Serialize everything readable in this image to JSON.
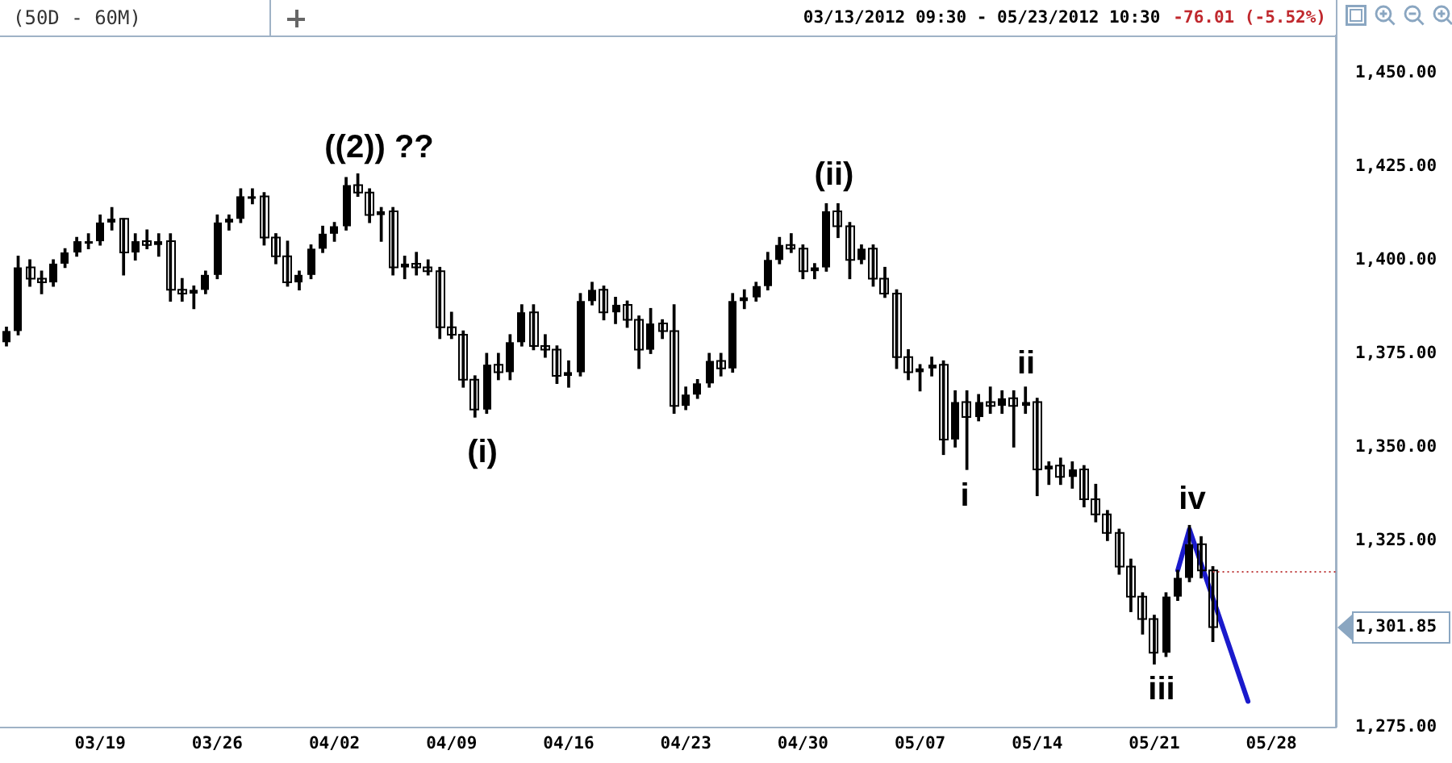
{
  "chart_data": {
    "type": "candlestick",
    "title": "(50D - 60M)",
    "subtitle": "03/13/2012 09:30 - 05/23/2012 10:30",
    "annotations": [
      "-76.01 (-5.52%)",
      "((2)) ??",
      "(i)",
      "(ii)",
      "i",
      "ii",
      "iii",
      "iv"
    ],
    "categories": [
      null,
      null,
      null,
      null,
      null,
      null,
      null,
      null,
      "03/19",
      null,
      null,
      null,
      null,
      null,
      null,
      null,
      null,
      null,
      "03/26",
      null,
      null,
      null,
      null,
      null,
      null,
      null,
      null,
      null,
      "04/02",
      null,
      null,
      null,
      null,
      null,
      null,
      null,
      null,
      null,
      "04/09",
      null,
      null,
      null,
      null,
      null,
      null,
      null,
      null,
      null,
      "04/16",
      null,
      null,
      null,
      null,
      null,
      null,
      null,
      null,
      null,
      "04/23",
      null,
      null,
      null,
      null,
      null,
      null,
      null,
      null,
      null,
      "04/30",
      null,
      null,
      null,
      null,
      null,
      null,
      null,
      null,
      null,
      "05/07",
      null,
      null,
      null,
      null,
      null,
      null,
      null,
      null,
      null,
      "05/14",
      null,
      null,
      null,
      null,
      null,
      null,
      null,
      null,
      null,
      "05/21",
      null,
      null,
      null,
      null,
      null,
      null,
      null,
      null,
      null,
      "05/28",
      null,
      null,
      null,
      null,
      null
    ],
    "ohlc": [
      [
        1378,
        1382,
        1377,
        1381
      ],
      [
        1381,
        1401,
        1380,
        1398
      ],
      [
        1398,
        1400,
        1393,
        1395
      ],
      [
        1395,
        1397,
        1391,
        1394
      ],
      [
        1394,
        1400,
        1393,
        1399
      ],
      [
        1399,
        1403,
        1398,
        1402
      ],
      [
        1402,
        1406,
        1401,
        1405
      ],
      [
        1405,
        1407,
        1403,
        1405
      ],
      [
        1405,
        1412,
        1404,
        1410
      ],
      [
        1410,
        1414,
        1408,
        1411
      ],
      [
        1411,
        1411,
        1396,
        1402
      ],
      [
        1402,
        1407,
        1400,
        1405
      ],
      [
        1405,
        1408,
        1403,
        1404
      ],
      [
        1404,
        1407,
        1401,
        1405
      ],
      [
        1405,
        1407,
        1389,
        1392
      ],
      [
        1392,
        1395,
        1389,
        1391
      ],
      [
        1391,
        1393,
        1387,
        1392
      ],
      [
        1392,
        1397,
        1391,
        1396
      ],
      [
        1396,
        1412,
        1395,
        1410
      ],
      [
        1410,
        1412,
        1408,
        1411
      ],
      [
        1411,
        1419,
        1410,
        1417
      ],
      [
        1417,
        1419,
        1415,
        1417
      ],
      [
        1417,
        1418,
        1404,
        1406
      ],
      [
        1406,
        1407,
        1399,
        1401
      ],
      [
        1401,
        1405,
        1393,
        1394
      ],
      [
        1394,
        1397,
        1392,
        1396
      ],
      [
        1396,
        1404,
        1395,
        1403
      ],
      [
        1403,
        1409,
        1402,
        1407
      ],
      [
        1407,
        1410,
        1405,
        1409
      ],
      [
        1409,
        1422,
        1408,
        1420
      ],
      [
        1420,
        1423,
        1417,
        1418
      ],
      [
        1418,
        1419,
        1410,
        1412
      ],
      [
        1412,
        1414,
        1405,
        1413
      ],
      [
        1413,
        1414,
        1396,
        1398
      ],
      [
        1398,
        1401,
        1395,
        1399
      ],
      [
        1399,
        1402,
        1396,
        1398
      ],
      [
        1398,
        1400,
        1396,
        1397
      ],
      [
        1397,
        1398,
        1379,
        1382
      ],
      [
        1382,
        1386,
        1379,
        1380
      ],
      [
        1380,
        1381,
        1366,
        1368
      ],
      [
        1368,
        1369,
        1358,
        1360
      ],
      [
        1360,
        1375,
        1359,
        1372
      ],
      [
        1372,
        1375,
        1368,
        1370
      ],
      [
        1370,
        1380,
        1368,
        1378
      ],
      [
        1378,
        1388,
        1377,
        1386
      ],
      [
        1386,
        1388,
        1376,
        1377
      ],
      [
        1377,
        1380,
        1374,
        1376
      ],
      [
        1376,
        1377,
        1367,
        1369
      ],
      [
        1369,
        1373,
        1366,
        1370
      ],
      [
        1370,
        1391,
        1369,
        1389
      ],
      [
        1389,
        1394,
        1388,
        1392
      ],
      [
        1392,
        1393,
        1384,
        1386
      ],
      [
        1386,
        1390,
        1383,
        1388
      ],
      [
        1388,
        1389,
        1382,
        1384
      ],
      [
        1384,
        1385,
        1371,
        1376
      ],
      [
        1376,
        1387,
        1375,
        1383
      ],
      [
        1383,
        1384,
        1379,
        1381
      ],
      [
        1381,
        1388,
        1359,
        1361
      ],
      [
        1361,
        1366,
        1360,
        1364
      ],
      [
        1364,
        1368,
        1363,
        1367
      ],
      [
        1367,
        1375,
        1366,
        1373
      ],
      [
        1373,
        1375,
        1369,
        1371
      ],
      [
        1371,
        1391,
        1370,
        1389
      ],
      [
        1389,
        1392,
        1387,
        1390
      ],
      [
        1390,
        1394,
        1389,
        1393
      ],
      [
        1393,
        1402,
        1392,
        1400
      ],
      [
        1400,
        1406,
        1399,
        1404
      ],
      [
        1404,
        1407,
        1402,
        1403
      ],
      [
        1403,
        1404,
        1395,
        1397
      ],
      [
        1397,
        1399,
        1395,
        1398
      ],
      [
        1398,
        1415,
        1397,
        1413
      ],
      [
        1413,
        1415,
        1406,
        1409
      ],
      [
        1409,
        1410,
        1395,
        1400
      ],
      [
        1400,
        1404,
        1399,
        1403
      ],
      [
        1403,
        1404,
        1393,
        1395
      ],
      [
        1395,
        1398,
        1390,
        1391
      ],
      [
        1391,
        1392,
        1371,
        1374
      ],
      [
        1374,
        1376,
        1368,
        1370
      ],
      [
        1370,
        1372,
        1365,
        1371
      ],
      [
        1371,
        1374,
        1369,
        1372
      ],
      [
        1372,
        1373,
        1348,
        1352
      ],
      [
        1352,
        1365,
        1350,
        1362
      ],
      [
        1362,
        1365,
        1344,
        1358
      ],
      [
        1358,
        1364,
        1357,
        1362
      ],
      [
        1362,
        1366,
        1359,
        1361
      ],
      [
        1361,
        1365,
        1359,
        1363
      ],
      [
        1363,
        1365,
        1350,
        1361
      ],
      [
        1361,
        1366,
        1359,
        1362
      ],
      [
        1362,
        1363,
        1337,
        1344
      ],
      [
        1344,
        1346,
        1340,
        1345
      ],
      [
        1345,
        1347,
        1340,
        1342
      ],
      [
        1342,
        1346,
        1339,
        1344
      ],
      [
        1344,
        1345,
        1334,
        1336
      ],
      [
        1336,
        1340,
        1330,
        1332
      ],
      [
        1332,
        1333,
        1325,
        1327
      ],
      [
        1327,
        1328,
        1316,
        1318
      ],
      [
        1318,
        1320,
        1306,
        1310
      ],
      [
        1310,
        1311,
        1300,
        1304
      ],
      [
        1304,
        1305,
        1292,
        1295
      ],
      [
        1295,
        1311,
        1294,
        1310
      ],
      [
        1310,
        1317,
        1309,
        1315
      ],
      [
        1315,
        1329,
        1314,
        1324
      ],
      [
        1324,
        1326,
        1315,
        1317
      ],
      [
        1317,
        1318,
        1298,
        1301.85
      ],
      null,
      null,
      null,
      null,
      null,
      null,
      null,
      null,
      null,
      null
    ],
    "color": "#000000",
    "series": [
      {
        "type": "line",
        "color": "#1a1acc",
        "values": [
          null,
          null,
          null,
          null,
          null,
          null,
          null,
          null,
          null,
          null,
          null,
          null,
          null,
          null,
          null,
          null,
          null,
          null,
          null,
          null,
          null,
          null,
          null,
          null,
          null,
          null,
          null,
          null,
          null,
          null,
          null,
          null,
          null,
          null,
          null,
          null,
          null,
          null,
          null,
          null,
          null,
          null,
          null,
          null,
          null,
          null,
          null,
          null,
          null,
          null,
          null,
          null,
          null,
          null,
          null,
          null,
          null,
          null,
          null,
          null,
          null,
          null,
          null,
          null,
          null,
          null,
          null,
          null,
          null,
          null,
          null,
          null,
          null,
          null,
          null,
          null,
          null,
          null,
          null,
          null,
          null,
          null,
          null,
          null,
          null,
          null,
          null,
          null,
          null,
          null,
          null,
          null,
          null,
          null,
          null,
          null,
          null,
          null,
          null,
          null,
          1317,
          1328,
          null,
          null,
          null,
          null,
          1282,
          null,
          null,
          null,
          null,
          null,
          null,
          null
        ]
      }
    ],
    "ylim": [
      1275,
      1460
    ],
    "yticks": [
      {
        "value": 1275,
        "label": "1,275.00"
      },
      {
        "value": 1301.85,
        "label": "1,301.85"
      },
      {
        "value": 1325,
        "label": "1,325.00"
      },
      {
        "value": 1350,
        "label": "1,350.00"
      },
      {
        "value": 1375,
        "label": "1,375.00"
      },
      {
        "value": 1400,
        "label": "1,400.00"
      },
      {
        "value": 1425,
        "label": "1,425.00"
      },
      {
        "value": 1450,
        "label": "1,450.00"
      }
    ],
    "ref_lines": [
      {
        "axis": "y",
        "value": 1317,
        "color": "#c04040",
        "line_style": "dotted"
      }
    ]
  }
}
